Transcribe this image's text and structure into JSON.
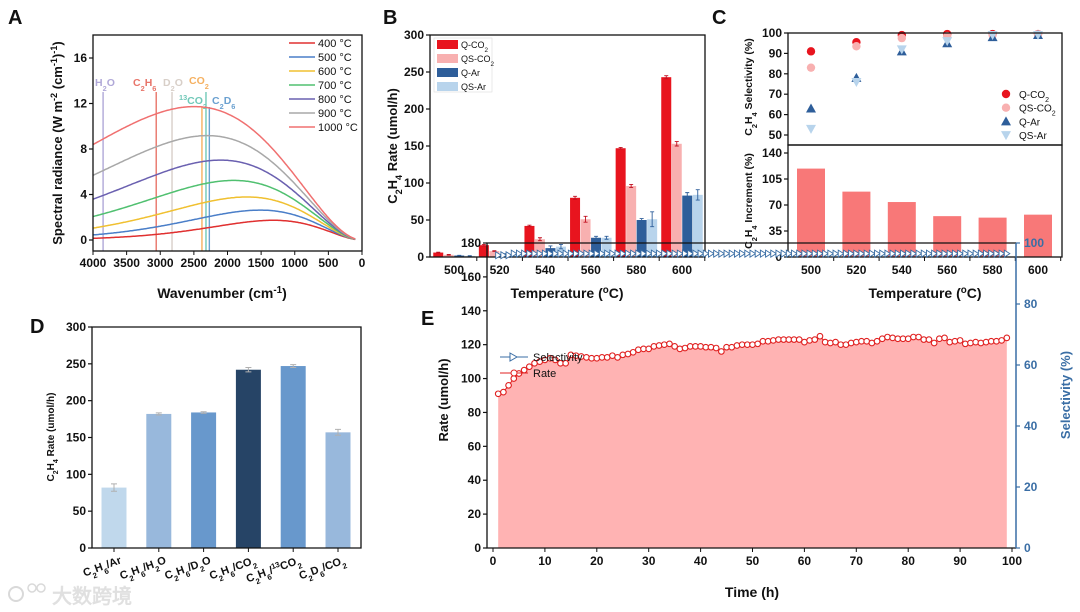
{
  "watermark": "大数跨境",
  "chart_data": [
    {
      "panel": "A",
      "type": "line",
      "xlabel": "Wavenumber (cm^{-1})",
      "ylabel": "Spectral radiance (W m^{-2} (cm^{-1})^{-1})",
      "xlim": [
        4000,
        0
      ],
      "ylim": [
        -1,
        18
      ],
      "xticks": [
        4000,
        3500,
        3000,
        2500,
        2000,
        1500,
        1000,
        500,
        0
      ],
      "yticks": [
        0,
        4,
        8,
        12,
        16
      ],
      "curve_model": "Planck blackbody spectral radiance vs wavenumber",
      "series": [
        {
          "name": "400 °C",
          "temperature_c": 400,
          "color": "#e03030",
          "peak": 1.8
        },
        {
          "name": "500 °C",
          "temperature_c": 500,
          "color": "#4a7ec8",
          "peak": 2.7
        },
        {
          "name": "600 °C",
          "temperature_c": 600,
          "color": "#f0c030",
          "peak": 3.8
        },
        {
          "name": "700 °C",
          "temperature_c": 700,
          "color": "#50c070",
          "peak": 5.3
        },
        {
          "name": "800 °C",
          "temperature_c": 800,
          "color": "#6a60b0",
          "peak": 7.0
        },
        {
          "name": "900 °C",
          "temperature_c": 900,
          "color": "#a8a8a8",
          "peak": 9.2
        },
        {
          "name": "1000 °C",
          "temperature_c": 1000,
          "color": "#f07070",
          "peak": 11.8
        }
      ],
      "markers": [
        {
          "label": "H_{2}O",
          "x": 3850,
          "color": "#b0a8d8",
          "row": 0
        },
        {
          "label": "C_{2}H_{6}",
          "x": 3060,
          "color": "#e8756a",
          "row": 0
        },
        {
          "label": "D_{2}O",
          "x": 2825,
          "color": "#d8cfc8",
          "row": 0
        },
        {
          "label": "CO_{2}",
          "x": 2380,
          "color": "#f5b060",
          "row": 1
        },
        {
          "label": "^{13}CO_{2}",
          "x": 2320,
          "color": "#70c8b8",
          "row": 0
        },
        {
          "label": "C_{2}D_{6}",
          "x": 2270,
          "color": "#6aa0d0",
          "row": 1
        }
      ],
      "legend": "top-right"
    },
    {
      "panel": "B",
      "type": "bar",
      "xlabel": "Temperature (^{o}C)",
      "ylabel": "C_{2}H_{4} Rate (umol/h)",
      "ylim": [
        0,
        300
      ],
      "yticks": [
        0,
        50,
        100,
        150,
        200,
        250,
        300
      ],
      "categories": [
        "500",
        "520",
        "540",
        "560",
        "580",
        "600"
      ],
      "series": [
        {
          "name": "Q-CO_{2}",
          "color": "#e8141e",
          "values": [
            6,
            16,
            42,
            80,
            147,
            243
          ],
          "errors": [
            0.5,
            1,
            1,
            2,
            1,
            2
          ]
        },
        {
          "name": "QS-CO_{2}",
          "color": "#f8b0b0",
          "values": [
            3,
            8,
            24,
            51,
            96,
            153
          ],
          "errors": [
            0.5,
            0.5,
            2,
            4,
            2,
            3
          ]
        },
        {
          "name": "Q-Ar",
          "color": "#2e5e9a",
          "values": [
            2,
            4,
            12,
            26,
            50,
            83
          ],
          "errors": [
            0.3,
            0.5,
            3,
            2,
            2,
            4
          ]
        },
        {
          "name": "QS-Ar",
          "color": "#b8d4ec",
          "values": [
            1.5,
            4.5,
            14,
            26,
            51,
            84
          ],
          "errors": [
            0.3,
            0.5,
            3,
            2,
            10,
            7
          ]
        }
      ],
      "legend": "top-left"
    },
    {
      "panel": "C",
      "type": "scatter",
      "subplots": [
        {
          "type": "scatter",
          "ylabel": "C_{2}H_{4} Selectivity (%)",
          "ylim": [
            45,
            100
          ],
          "yticks": [
            50,
            60,
            70,
            80,
            90,
            100
          ],
          "categories": [
            "500",
            "520",
            "540",
            "560",
            "580",
            "600"
          ],
          "series": [
            {
              "name": "Q-CO_{2}",
              "marker": "circle",
              "color": "#e8141e",
              "values": [
                91,
                95.5,
                99,
                99.5,
                99.5,
                99.5
              ]
            },
            {
              "name": "QS-CO_{2}",
              "marker": "circle",
              "color": "#f8b0b0",
              "values": [
                83,
                93.5,
                97.5,
                98.5,
                99,
                99.5
              ]
            },
            {
              "name": "Q-Ar",
              "marker": "triangle-up",
              "color": "#2e5e9a",
              "values": [
                63,
                78,
                91,
                95,
                98,
                99
              ]
            },
            {
              "name": "QS-Ar",
              "marker": "triangle-down",
              "color": "#b8d4ec",
              "values": [
                53,
                76,
                92,
                96,
                99,
                99
              ]
            }
          ],
          "legend": "bottom-right"
        },
        {
          "type": "bar",
          "ylabel": "C_{2}H_{4} Increment (%)",
          "ylim": [
            0,
            143
          ],
          "yticks": [
            0,
            35,
            70,
            105,
            140
          ],
          "categories": [
            "500",
            "520",
            "540",
            "560",
            "580",
            "600"
          ],
          "color": "#f87878",
          "values": [
            119,
            88,
            74,
            55,
            53,
            57
          ]
        }
      ],
      "xlabel": "Temperature (^{o}C)"
    },
    {
      "panel": "D",
      "type": "bar",
      "ylabel": "C_{2}H_{4} Rate (umol/h)",
      "ylim": [
        0,
        300
      ],
      "yticks": [
        0,
        50,
        100,
        150,
        200,
        250,
        300
      ],
      "categories": [
        "C_{2}H_{6}/Ar",
        "C_{2}H_{6}/H_{2}O",
        "C_{2}H_{6}/D_{2}O",
        "C_{2}H_{6}/CO_{2}",
        "C_{2}H_{6}/^{13}CO_{2}",
        "C_{2}D_{6}/CO_{2}"
      ],
      "values": [
        82,
        182,
        184,
        242,
        247,
        157
      ],
      "errors": [
        5,
        1.5,
        1,
        3,
        2,
        4
      ],
      "colors": [
        "#c0d8ec",
        "#98b8dc",
        "#6898cc",
        "#264466",
        "#6898cc",
        "#98b8dc"
      ]
    },
    {
      "panel": "E",
      "type": "line",
      "xlabel": "Time (h)",
      "ylabel": "Rate (umol/h)",
      "y2label": "Selectivity (%)",
      "xlim": [
        0,
        100
      ],
      "ylim": [
        0,
        180
      ],
      "y2lim": [
        0,
        100
      ],
      "xticks": [
        0,
        10,
        20,
        30,
        40,
        50,
        60,
        70,
        80,
        90,
        100
      ],
      "yticks": [
        0,
        20,
        40,
        60,
        80,
        100,
        120,
        140,
        160,
        180
      ],
      "y2ticks": [
        0,
        20,
        40,
        60,
        80,
        100
      ],
      "axis2_color": "#3a6ea5",
      "x_start": 1,
      "x_step": 1,
      "series": [
        {
          "name": "Selectivity",
          "axis": "right",
          "marker": "triangle-right-open",
          "color": "#3a6ea5",
          "values": [
            96,
            96,
            96,
            96.5,
            96.5,
            96.5,
            96.5,
            96.5,
            96.5,
            96.5,
            96.5,
            96.5,
            96.5,
            96.5,
            96.5,
            96.5,
            96.5,
            96.5,
            96.5,
            96.5,
            96.5,
            96.5,
            96.5,
            96.5,
            96.5,
            96.5,
            96.5,
            96.5,
            96.5,
            96.5,
            96.5,
            96.5,
            96.5,
            96.5,
            96.5,
            96.5,
            96.5,
            96.5,
            96.5,
            96.5,
            96.5,
            96.5,
            96.5,
            96.5,
            96.5,
            96.5,
            96.5,
            96.5,
            96.5,
            96.5,
            96.5,
            96.5,
            96.5,
            96.5,
            96.5,
            96.5,
            96.5,
            96.5,
            96.5,
            96.5,
            96.5,
            96.5,
            96.5,
            96.5,
            96.5,
            96.5,
            96.5,
            96.5,
            96.5,
            96.5,
            96.5,
            96.5,
            96.5,
            96.5,
            96.5,
            96.5,
            96.5,
            96.5,
            96.5,
            96.5,
            96.5,
            96.5,
            96.5,
            96.5,
            96.5,
            96.5,
            96.5,
            96.5,
            96.5,
            96.5,
            96.5,
            96.5,
            96.5,
            96.5,
            96.5,
            96.5,
            96.5,
            96.5,
            96.5
          ]
        },
        {
          "name": "Rate",
          "axis": "left",
          "marker": "circle-open",
          "color": "#e02020",
          "fill": "#ffb3b3",
          "values": [
            91,
            92,
            96,
            100,
            103,
            105,
            107,
            109,
            110,
            111,
            112,
            111,
            109,
            109,
            114,
            113.5,
            113,
            112.5,
            112,
            112,
            112.5,
            112.5,
            113.5,
            112.5,
            114,
            114.5,
            115.5,
            117,
            117.5,
            117.5,
            119,
            119.5,
            120,
            120.5,
            119,
            117.5,
            118,
            119,
            119,
            119,
            118.5,
            118.5,
            118,
            116,
            118.5,
            118.5,
            119.5,
            120,
            120,
            120,
            120.5,
            122,
            122,
            122.5,
            123,
            123,
            123,
            123,
            123,
            121.5,
            122.5,
            123,
            125,
            121.5,
            121,
            121.5,
            120,
            120,
            121,
            121.5,
            122,
            122,
            121,
            122,
            123.5,
            124.5,
            124,
            123.5,
            123.5,
            123.5,
            124.5,
            124.5,
            123,
            123,
            121,
            123.5,
            124,
            121.5,
            122,
            122.5,
            120.5,
            121,
            121.5,
            121,
            121.5,
            122,
            122,
            122.5,
            124
          ]
        }
      ],
      "legend": "top-left"
    }
  ]
}
